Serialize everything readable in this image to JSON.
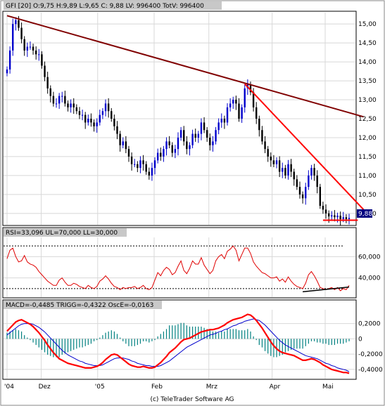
{
  "copyright": "(c) TeleTrader Software AG",
  "colors": {
    "up": "#0000cc",
    "down": "#000000",
    "trend": "#800000",
    "support": "#ff0000",
    "rsi": "#e00000",
    "macd": "#ff0000",
    "trigger": "#0000cc",
    "osc": "#008080",
    "badge": "#000080"
  },
  "chart_data": [
    {
      "type": "candlestick",
      "header": "GFI [20]  O:9,75  H:9,89  L:9,65  C: 9,88  LV: 996400  TotV: 996400",
      "last_value_label": "9,88",
      "yticks": [
        "10,00",
        "10,50",
        "11,00",
        "11,50",
        "12,00",
        "12,50",
        "13,00",
        "13,50",
        "14,00",
        "14,50",
        "15,00"
      ],
      "ylim": [
        9.7,
        15.3
      ],
      "xticks": [
        "'04",
        "Dez",
        "'05",
        "Feb",
        "Mrz",
        "Apr",
        "Mai"
      ],
      "trendlines": [
        {
          "from": [
            0,
            15.22
          ],
          "to": [
            123,
            12.55
          ],
          "color": "trend"
        },
        {
          "from": [
            82,
            13.42
          ],
          "to": [
            123,
            10.1
          ],
          "color": "support"
        },
        {
          "from": [
            109,
            9.82
          ],
          "to": [
            121,
            9.82
          ],
          "color": "support"
        }
      ],
      "close": [
        13.8,
        14.3,
        15.0,
        15.1,
        14.9,
        14.6,
        14.3,
        14.4,
        14.4,
        14.3,
        14.2,
        14.2,
        13.9,
        13.6,
        13.3,
        13.1,
        12.9,
        12.9,
        13.1,
        13.1,
        12.9,
        12.8,
        12.9,
        12.8,
        12.7,
        12.6,
        12.6,
        12.4,
        12.5,
        12.4,
        12.3,
        12.4,
        12.6,
        12.7,
        12.9,
        12.7,
        12.5,
        12.3,
        12.1,
        11.8,
        11.9,
        11.7,
        11.5,
        11.3,
        11.3,
        11.2,
        11.4,
        11.3,
        11.1,
        11.0,
        11.2,
        11.4,
        11.6,
        11.5,
        11.7,
        11.9,
        11.8,
        11.6,
        11.7,
        12.0,
        12.2,
        11.9,
        11.7,
        11.8,
        12.1,
        12.0,
        12.1,
        12.4,
        12.2,
        12.0,
        11.8,
        11.9,
        12.2,
        12.4,
        12.5,
        12.4,
        12.8,
        12.9,
        13.0,
        12.9,
        12.5,
        12.8,
        13.3,
        13.4,
        13.2,
        12.8,
        12.5,
        12.2,
        11.9,
        11.7,
        11.5,
        11.4,
        11.3,
        11.4,
        11.1,
        11.2,
        11.0,
        11.3,
        11.1,
        10.9,
        10.7,
        10.5,
        10.4,
        10.7,
        11.0,
        11.2,
        11.0,
        10.7,
        10.2,
        10.1,
        10.0,
        9.92,
        9.95,
        9.9,
        9.94,
        9.85,
        9.9,
        9.85,
        9.88
      ]
    },
    {
      "type": "line",
      "header": "RSI=33,096  UL=70,000  LL=30,000",
      "yticks": [
        "40,000",
        "60,000"
      ],
      "ylim": [
        22,
        78
      ],
      "levels": [
        70,
        30
      ],
      "series": [
        {
          "color": "rsi",
          "values": [
            58,
            66,
            68,
            60,
            55,
            56,
            61,
            55,
            53,
            52,
            50,
            46,
            43,
            40,
            37,
            35,
            33,
            33,
            38,
            40,
            36,
            33,
            33,
            35,
            34,
            32,
            31,
            30,
            33,
            31,
            30,
            32,
            37,
            39,
            42,
            39,
            35,
            32,
            31,
            29,
            31,
            30,
            31,
            31,
            32,
            30,
            31,
            33,
            30,
            29,
            31,
            38,
            45,
            42,
            47,
            50,
            48,
            43,
            45,
            51,
            56,
            47,
            44,
            49,
            56,
            53,
            53,
            59,
            52,
            48,
            44,
            47,
            56,
            60,
            62,
            58,
            65,
            67,
            70,
            66,
            56,
            62,
            68,
            68,
            63,
            55,
            51,
            48,
            45,
            44,
            42,
            40,
            40,
            41,
            37,
            39,
            36,
            41,
            37,
            34,
            32,
            31,
            30,
            35,
            43,
            46,
            42,
            37,
            31,
            30,
            29,
            30,
            31,
            29,
            31,
            28,
            30,
            29,
            33
          ]
        }
      ]
    },
    {
      "type": "line",
      "header": "MACD=-0,4485  TRIGG=-0,4322  OscE=-0,0163",
      "yticks": [
        "0,2000",
        "0",
        "-0,2000",
        "-0,4000"
      ],
      "ylim": [
        -0.52,
        0.38
      ],
      "series": [
        {
          "color": "macd",
          "values": [
            0.1,
            0.14,
            0.18,
            0.22,
            0.24,
            0.25,
            0.23,
            0.21,
            0.19,
            0.16,
            0.12,
            0.08,
            0.03,
            -0.02,
            -0.08,
            -0.13,
            -0.18,
            -0.22,
            -0.26,
            -0.28,
            -0.3,
            -0.32,
            -0.33,
            -0.34,
            -0.35,
            -0.36,
            -0.37,
            -0.38,
            -0.38,
            -0.38,
            -0.37,
            -0.36,
            -0.34,
            -0.31,
            -0.27,
            -0.24,
            -0.21,
            -0.2,
            -0.21,
            -0.24,
            -0.27,
            -0.3,
            -0.33,
            -0.35,
            -0.36,
            -0.37,
            -0.37,
            -0.36,
            -0.37,
            -0.38,
            -0.38,
            -0.37,
            -0.34,
            -0.31,
            -0.27,
            -0.23,
            -0.18,
            -0.15,
            -0.12,
            -0.08,
            -0.04,
            -0.01,
            0.0,
            0.01,
            0.03,
            0.05,
            0.07,
            0.09,
            0.1,
            0.11,
            0.12,
            0.12,
            0.13,
            0.14,
            0.16,
            0.18,
            0.21,
            0.23,
            0.25,
            0.26,
            0.27,
            0.28,
            0.3,
            0.32,
            0.31,
            0.28,
            0.24,
            0.19,
            0.14,
            0.08,
            0.02,
            -0.04,
            -0.09,
            -0.13,
            -0.16,
            -0.18,
            -0.19,
            -0.2,
            -0.21,
            -0.22,
            -0.24,
            -0.26,
            -0.28,
            -0.28,
            -0.27,
            -0.26,
            -0.27,
            -0.29,
            -0.31,
            -0.34,
            -0.36,
            -0.38,
            -0.4,
            -0.41,
            -0.42,
            -0.43,
            -0.44,
            -0.44,
            -0.45
          ]
        },
        {
          "color": "trigger",
          "values": [
            0.05,
            0.08,
            0.11,
            0.14,
            0.17,
            0.19,
            0.2,
            0.2,
            0.2,
            0.19,
            0.17,
            0.15,
            0.12,
            0.09,
            0.05,
            0.01,
            -0.03,
            -0.07,
            -0.11,
            -0.15,
            -0.18,
            -0.21,
            -0.23,
            -0.25,
            -0.27,
            -0.29,
            -0.3,
            -0.32,
            -0.33,
            -0.34,
            -0.35,
            -0.35,
            -0.35,
            -0.34,
            -0.32,
            -0.3,
            -0.28,
            -0.26,
            -0.25,
            -0.25,
            -0.25,
            -0.26,
            -0.27,
            -0.29,
            -0.3,
            -0.32,
            -0.33,
            -0.34,
            -0.35,
            -0.35,
            -0.36,
            -0.36,
            -0.36,
            -0.35,
            -0.33,
            -0.31,
            -0.29,
            -0.26,
            -0.23,
            -0.2,
            -0.17,
            -0.14,
            -0.11,
            -0.09,
            -0.07,
            -0.05,
            -0.03,
            -0.01,
            0.01,
            0.03,
            0.05,
            0.06,
            0.07,
            0.09,
            0.1,
            0.12,
            0.13,
            0.15,
            0.17,
            0.18,
            0.2,
            0.21,
            0.23,
            0.24,
            0.25,
            0.26,
            0.25,
            0.24,
            0.21,
            0.18,
            0.14,
            0.1,
            0.06,
            0.02,
            -0.02,
            -0.05,
            -0.08,
            -0.1,
            -0.12,
            -0.14,
            -0.16,
            -0.18,
            -0.2,
            -0.22,
            -0.23,
            -0.24,
            -0.25,
            -0.26,
            -0.28,
            -0.3,
            -0.32,
            -0.33,
            -0.35,
            -0.36,
            -0.38,
            -0.39,
            -0.4,
            -0.41,
            -0.43
          ]
        }
      ]
    }
  ]
}
